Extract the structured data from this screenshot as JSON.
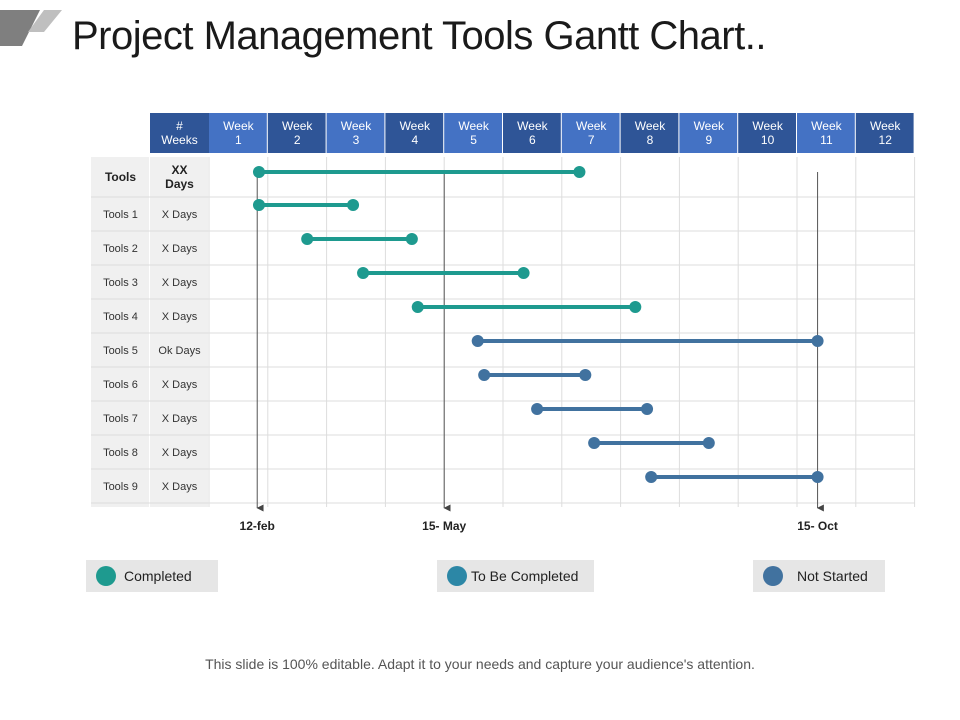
{
  "title": "Project Management Tools Gantt Chart..",
  "footer": "This slide is 100% editable. Adapt it to your needs and capture your audience's attention.",
  "colors": {
    "header_fill": "#2f5597",
    "header_fill_alt": "#4472c4",
    "completed": "#1e9a8f",
    "to_be_completed": "#2c87a6",
    "not_started": "#41729f",
    "label_fill": "#f0f0f0",
    "grid": "#dddddd"
  },
  "chart_data": {
    "type": "gantt",
    "corner_header": [
      "#",
      "Weeks"
    ],
    "week_headers": [
      [
        "Week",
        "1"
      ],
      [
        "Week",
        "2"
      ],
      [
        "Week",
        "3"
      ],
      [
        "Week",
        "4"
      ],
      [
        "Week",
        "5"
      ],
      [
        "Week",
        "6"
      ],
      [
        "Week",
        "7"
      ],
      [
        "Week",
        "8"
      ],
      [
        "Week",
        "9"
      ],
      [
        "Week",
        "10"
      ],
      [
        "Week",
        "11"
      ],
      [
        "Week",
        "12"
      ]
    ],
    "header_row": {
      "tool": "Tools",
      "days": [
        "XX",
        "Days"
      ]
    },
    "header_bar": {
      "start": 1.35,
      "end": 6.8,
      "status": "completed"
    },
    "tasks": [
      {
        "tool": "Tools 1",
        "days": "X Days",
        "start": 1.35,
        "end": 2.95,
        "status": "completed"
      },
      {
        "tool": "Tools 2",
        "days": "X Days",
        "start": 2.17,
        "end": 3.95,
        "status": "completed"
      },
      {
        "tool": "Tools 3",
        "days": "X Days",
        "start": 3.12,
        "end": 5.85,
        "status": "completed"
      },
      {
        "tool": "Tools 4",
        "days": "X Days",
        "start": 4.05,
        "end": 7.75,
        "status": "completed"
      },
      {
        "tool": "Tools 5",
        "days": "Ok Days",
        "start": 5.07,
        "end": 10.85,
        "status": "not_started"
      },
      {
        "tool": "Tools 6",
        "days": "X Days",
        "start": 5.18,
        "end": 6.9,
        "status": "not_started"
      },
      {
        "tool": "Tools 7",
        "days": "X Days",
        "start": 6.08,
        "end": 7.95,
        "status": "not_started"
      },
      {
        "tool": "Tools 8",
        "days": "X Days",
        "start": 7.05,
        "end": 9.0,
        "status": "not_started"
      },
      {
        "tool": "Tools 9",
        "days": "X Days",
        "start": 8.02,
        "end": 10.85,
        "status": "not_started"
      }
    ],
    "milestones": [
      {
        "label": "12-feb",
        "position": 1.32
      },
      {
        "label": "15- May",
        "position": 4.5
      },
      {
        "label": "15- Oct",
        "position": 10.85
      }
    ],
    "legend": [
      {
        "label": "Completed",
        "status": "completed"
      },
      {
        "label": "To Be Completed",
        "status": "to_be_completed"
      },
      {
        "label": "Not Started",
        "status": "not_started"
      }
    ]
  }
}
